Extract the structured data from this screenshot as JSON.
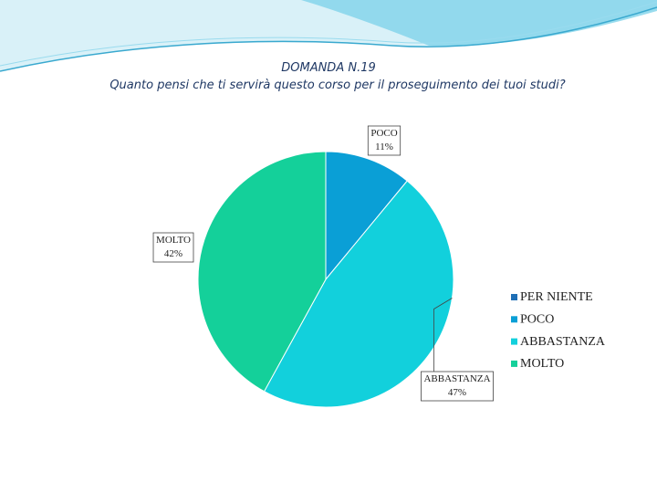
{
  "chart_data": {
    "type": "pie",
    "title": "DOMANDA N.19",
    "subtitle": "Quanto pensi che ti servirà questo corso per il proseguimento dei tuoi studi?",
    "categories": [
      "PER NIENTE",
      "POCO",
      "ABBASTANZA",
      "MOLTO"
    ],
    "values": [
      0,
      11,
      47,
      42
    ],
    "value_labels": [
      null,
      "11%",
      "47%",
      "42%"
    ],
    "colors": [
      "#1f6fb5",
      "#0a9fd6",
      "#12d0dc",
      "#14d09a"
    ],
    "legend": "right"
  }
}
